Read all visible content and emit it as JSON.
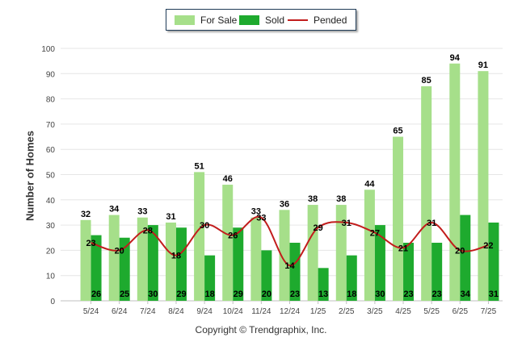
{
  "legend": {
    "items": [
      {
        "label": "For Sale",
        "color": "#a6df8a"
      },
      {
        "label": "Sold",
        "color": "#1eaa2e"
      },
      {
        "label": "Pended",
        "color": "#c21c1c"
      }
    ]
  },
  "copyright": "Copyright © Trendgraphix, Inc.",
  "chart_data": {
    "type": "bar",
    "title": "",
    "xlabel": "",
    "ylabel": "Number of Homes",
    "ylim": [
      0,
      100
    ],
    "yticks": [
      0,
      10,
      20,
      30,
      40,
      50,
      60,
      70,
      80,
      90,
      100
    ],
    "grid": true,
    "legend_position": "top-center",
    "categories": [
      "5/24",
      "6/24",
      "7/24",
      "8/24",
      "9/24",
      "10/24",
      "11/24",
      "12/24",
      "1/25",
      "2/25",
      "3/25",
      "4/25",
      "5/25",
      "6/25",
      "7/25"
    ],
    "series": [
      {
        "name": "For Sale",
        "type": "bar",
        "color": "#a6df8a",
        "values": [
          32,
          34,
          33,
          31,
          51,
          46,
          33,
          36,
          38,
          38,
          44,
          65,
          85,
          94,
          91
        ]
      },
      {
        "name": "Sold",
        "type": "bar",
        "color": "#1eaa2e",
        "values": [
          26,
          25,
          30,
          29,
          18,
          29,
          20,
          23,
          13,
          18,
          30,
          23,
          23,
          34,
          31
        ]
      },
      {
        "name": "Pended",
        "type": "line",
        "color": "#c21c1c",
        "values": [
          23,
          20,
          28,
          18,
          30,
          26,
          33,
          14,
          29,
          31,
          27,
          21,
          31,
          20,
          22
        ]
      }
    ]
  }
}
